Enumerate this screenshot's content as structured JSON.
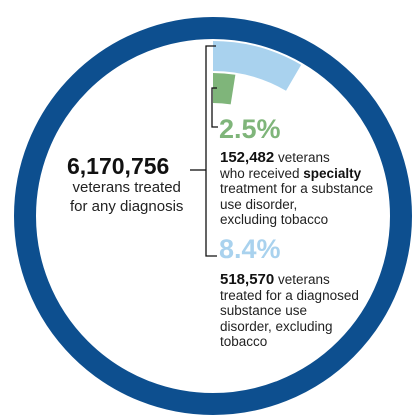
{
  "total": {
    "value": "6,170,756",
    "line1": "veterans treated",
    "line2": "for any diagnosis"
  },
  "specialty": {
    "percent": "2.5%",
    "count": "152,482",
    "pre": " veterans",
    "line2_pre": "who received ",
    "line2_bold": "specialty",
    "line3": "treatment for a substance",
    "line4": "use disorder,",
    "line5": "excluding tobacco",
    "fraction": 0.025,
    "color": "#7fb57a"
  },
  "diagnosed": {
    "percent": "8.4%",
    "count": "518,570",
    "pre": " veterans",
    "line2": "treated for a diagnosed",
    "line3": "substance use",
    "line4": "disorder, excluding",
    "line5": "tobacco",
    "fraction": 0.084,
    "color": "#a9d2ee"
  },
  "colors": {
    "ring": "#0d4f8f",
    "bracket": "#111111"
  }
}
